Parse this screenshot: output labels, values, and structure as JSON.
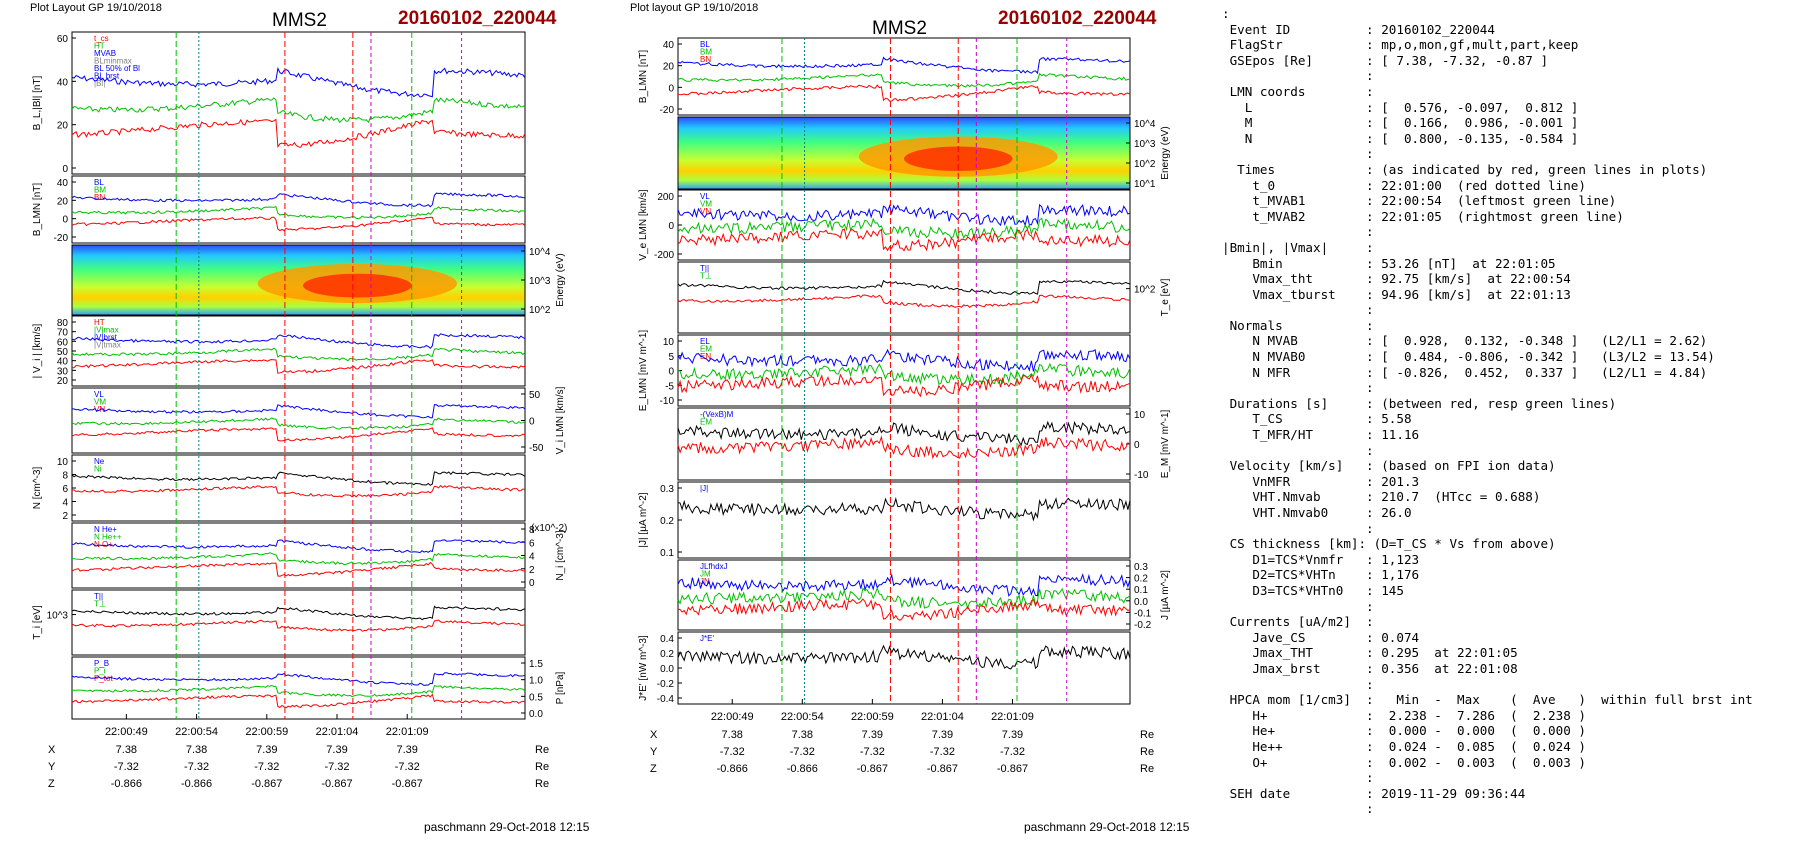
{
  "left": {
    "plot_layout": "Plot Layout GP 19/10/2018",
    "spacecraft": "MMS2",
    "event": "20160102_220044",
    "footer": "paschmann 29-Oct-2018 12:15"
  },
  "middle": {
    "plot_layout": "Plot layout GP 19/10/2018",
    "spacecraft": "MMS2",
    "event": "20160102_220044",
    "footer": "paschmann 29-Oct-2018 12:15"
  },
  "colors": {
    "red": "#ff0000",
    "green": "#00c000",
    "blue": "#0000ff",
    "gray": "#808080",
    "event_red": "#990000",
    "magenta": "#cc00cc",
    "teal": "#008080"
  },
  "chart_data": [
    {
      "id": "left",
      "type": "line",
      "time_ticks": [
        "22:00:49",
        "22:00:54",
        "22:00:59",
        "22:01:04",
        "22:01:09"
      ],
      "position_table": {
        "rows": [
          {
            "label": "X",
            "values": [
              "7.38",
              "7.38",
              "7.39",
              "7.39",
              "7.39"
            ],
            "unit": "Re"
          },
          {
            "label": "Y",
            "values": [
              "-7.32",
              "-7.32",
              "-7.32",
              "-7.32",
              "-7.32"
            ],
            "unit": "Re"
          },
          {
            "label": "Z",
            "values": [
              "-0.866",
              "-0.866",
              "-0.867",
              "-0.867",
              "-0.867"
            ],
            "unit": "Re"
          }
        ]
      },
      "panels": [
        {
          "ylabel": "B_L,|Bl| [nT]",
          "ylabel_side": "left",
          "ticks": [
            "60",
            "40",
            "20",
            "0"
          ],
          "legend": [
            "t_cs",
            "HT",
            "MVAB",
            "BLminmax",
            "BL 50% of Bl",
            "BL brst",
            "|Bl|"
          ]
        },
        {
          "ylabel": "B_LMN [nT]",
          "ylabel_side": "left",
          "ticks": [
            "40",
            "20",
            "0",
            "-20"
          ],
          "legend": [
            "BL",
            "BM",
            "BN"
          ]
        },
        {
          "ylabel": "Energy (eV)",
          "ylabel_side": "right",
          "ticks": [
            "10^4",
            "10^3",
            "10^2"
          ],
          "spectrogram": true
        },
        {
          "ylabel": "| V_i | [km/s]",
          "ylabel_side": "left",
          "ticks": [
            "80",
            "70",
            "60",
            "50",
            "40",
            "30",
            "20"
          ],
          "legend": [
            "HT",
            "|V|max",
            "|V|brst",
            "|V|tmax"
          ]
        },
        {
          "ylabel": "V_i LMN [km/s]",
          "ylabel_side": "right",
          "ticks": [
            "50",
            "0",
            "-50"
          ],
          "legend": [
            "VL",
            "VM",
            "VN"
          ]
        },
        {
          "ylabel": "N [cm^-3]",
          "ylabel_side": "left",
          "ticks": [
            "10",
            "8",
            "6",
            "4",
            "2"
          ],
          "legend": [
            "Ne",
            "Ni"
          ]
        },
        {
          "ylabel": "N_i [cm^-3]",
          "ylabel_side": "right",
          "ticks": [
            "8",
            "6",
            "4",
            "2",
            "0"
          ],
          "scale_note": "(x10^-2)",
          "legend": [
            "N He+",
            "N He++",
            "N O+"
          ]
        },
        {
          "ylabel": "T_i [eV]",
          "ylabel_side": "left",
          "ticks": [
            "10^3"
          ],
          "legend": [
            "T||",
            "T⊥"
          ]
        },
        {
          "ylabel": "P [nPa]",
          "ylabel_side": "right",
          "ticks": [
            "1.5",
            "1.0",
            "0.5",
            "0.0"
          ],
          "legend": [
            "P_B",
            "P_i",
            "P_tot"
          ]
        }
      ]
    },
    {
      "id": "middle",
      "type": "line",
      "time_ticks": [
        "22:00:49",
        "22:00:54",
        "22:00:59",
        "22:01:04",
        "22:01:09"
      ],
      "position_table": {
        "rows": [
          {
            "label": "X",
            "values": [
              "7.38",
              "7.38",
              "7.39",
              "7.39",
              "7.39"
            ],
            "unit": "Re"
          },
          {
            "label": "Y",
            "values": [
              "-7.32",
              "-7.32",
              "-7.32",
              "-7.32",
              "-7.32"
            ],
            "unit": "Re"
          },
          {
            "label": "Z",
            "values": [
              "-0.866",
              "-0.866",
              "-0.867",
              "-0.867",
              "-0.867"
            ],
            "unit": "Re"
          }
        ]
      },
      "panels": [
        {
          "ylabel": "B_LMN [nT]",
          "ylabel_side": "left",
          "ticks": [
            "40",
            "20",
            "0",
            "-20"
          ],
          "legend": [
            "BL",
            "BM",
            "BN"
          ]
        },
        {
          "ylabel": "Energy (eV)",
          "ylabel_side": "right",
          "ticks": [
            "10^4",
            "10^3",
            "10^2",
            "10^1"
          ],
          "spectrogram": true
        },
        {
          "ylabel": "V_e LMN [km/s]",
          "ylabel_side": "left",
          "ticks": [
            "200",
            "0",
            "-200"
          ],
          "legend": [
            "VL",
            "VM",
            "VN"
          ]
        },
        {
          "ylabel": "T_e [eV]",
          "ylabel_side": "right",
          "ticks": [
            "10^2"
          ],
          "legend": [
            "T||",
            "T⊥"
          ]
        },
        {
          "ylabel": "E_LMN [mV m^-1]",
          "ylabel_side": "left",
          "ticks": [
            "10",
            "5",
            "0",
            "-5",
            "-10"
          ],
          "legend": [
            "EL",
            "EM",
            "EN"
          ]
        },
        {
          "ylabel": "E_M [mV m^-1]",
          "ylabel_side": "right",
          "ticks": [
            "10",
            "0",
            "-10"
          ],
          "legend": [
            "-(VexB)M",
            "EM"
          ]
        },
        {
          "ylabel": "|J| [µA m^-2]",
          "ylabel_side": "left",
          "ticks": [
            "0.3",
            "0.2",
            "0.1"
          ],
          "legend": [
            "|J|"
          ]
        },
        {
          "ylabel": "J [µA m^-2]",
          "ylabel_side": "right",
          "ticks": [
            "0.3",
            "0.2",
            "0.1",
            "0.0",
            "-0.1",
            "-0.2"
          ],
          "legend": [
            "JLfhdxJ",
            "JM",
            "JN"
          ]
        },
        {
          "ylabel": "J*E' [nW m^-3]",
          "ylabel_side": "left",
          "ticks": [
            "0.4",
            "0.2",
            "0.0",
            "-0.2",
            "-0.4"
          ],
          "legend": [
            "J*E'"
          ]
        }
      ]
    }
  ],
  "info_lines": [
    ":",
    " Event ID          : 20160102_220044",
    " FlagStr           : mp,o,mon,gf,mult,part,keep",
    " GSEpos [Re]       : [ 7.38, -7.32, -0.87 ]",
    "                   :",
    " LMN coords        :",
    "   L               : [  0.576, -0.097,  0.812 ]",
    "   M               : [  0.166,  0.986, -0.001 ]",
    "   N               : [  0.800, -0.135, -0.584 ]",
    "                   :",
    "  Times            : (as indicated by red, green lines in plots)",
    "    t_0            : 22:01:00  (red dotted line)",
    "    t_MVAB1        : 22:00:54  (leftmost green line)",
    "    t_MVAB2        : 22:01:05  (rightmost green line)",
    "                   :",
    "|Bmin|, |Vmax|     :",
    "    Bmin           : 53.26 [nT]  at 22:01:05",
    "    Vmax_tht       : 92.75 [km/s]  at 22:00:54",
    "    Vmax_tburst    : 94.96 [km/s]  at 22:01:13",
    "                   :",
    " Normals           :",
    "    N MVAB         : [  0.928,  0.132, -0.348 ]   (L2/L1 = 2.62)",
    "    N MVAB0        : [  0.484, -0.806, -0.342 ]   (L3/L2 = 13.54)",
    "    N MFR          : [ -0.826,  0.452,  0.337 ]   (L2/L1 = 4.84)",
    "                   :",
    " Durations [s]     : (between red, resp green lines)",
    "    T_CS           : 5.58",
    "    T_MFR/HT       : 11.16",
    "                   :",
    " Velocity [km/s]   : (based on FPI ion data)",
    "    VnMFR          : 201.3",
    "    VHT.Nmvab      : 210.7  (HTcc = 0.688)",
    "    VHT.Nmvab0     : 26.0",
    "                   :",
    " CS thickness [km]: (D=T_CS * Vs from above)",
    "    D1=TCS*Vnmfr   : 1,123",
    "    D2=TCS*VHTn    : 1,176",
    "    D3=TCS*VHTn0   : 145",
    "                   :",
    " Currents [uA/m2]  :",
    "    Jave_CS        : 0.074",
    "    Jmax_THT       : 0.295  at 22:01:05",
    "    Jmax_brst      : 0.356  at 22:01:08",
    "                   :",
    " HPCA mom [1/cm3]  :   Min  -  Max    (  Ave   )  within full brst int",
    "    H+             :  2.238 -  7.286  (  2.238 )",
    "    He+            :  0.000 -  0.000  (  0.000 )",
    "    He++           :  0.024 -  0.085  (  0.024 )",
    "    O+             :  0.002 -  0.003  (  0.003 )",
    "                   :",
    " SEH date          : 2019-11-29 09:36:44",
    "                   :"
  ]
}
